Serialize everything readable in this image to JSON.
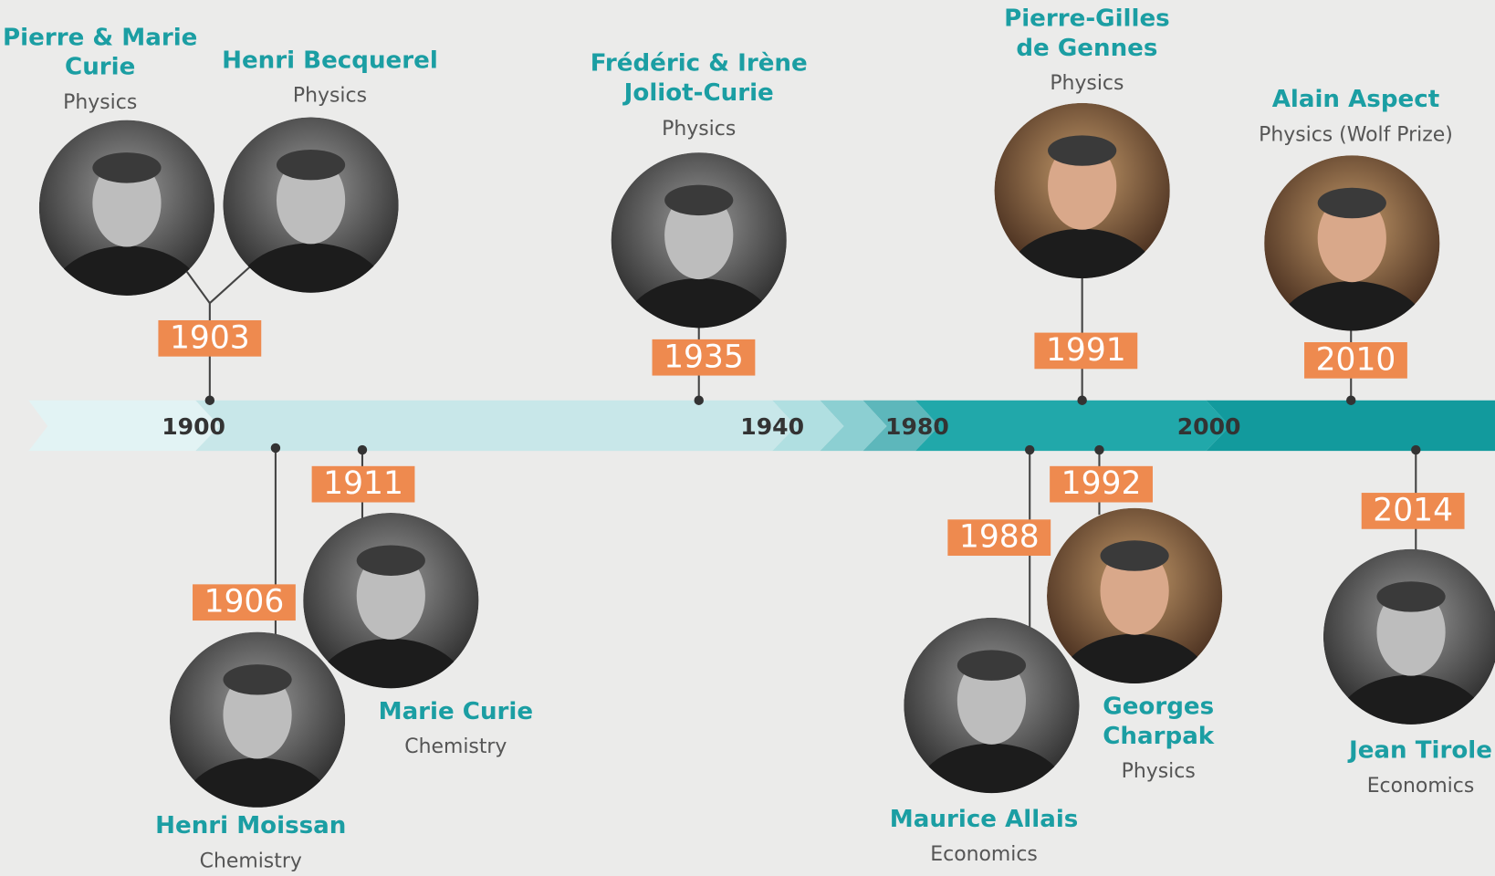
{
  "axis_labels": [
    "1900",
    "1940",
    "1980",
    "2000"
  ],
  "entries": [
    {
      "year": "1903",
      "name": [
        "Pierre & Marie",
        "Curie"
      ],
      "field": "Physics"
    },
    {
      "name": [
        "Henri Becquerel"
      ],
      "field": "Physics"
    },
    {
      "year": "1906",
      "name": [
        "Henri Moissan"
      ],
      "field": "Chemistry"
    },
    {
      "year": "1911",
      "name": [
        "Marie Curie"
      ],
      "field": "Chemistry"
    },
    {
      "year": "1935",
      "name": [
        "Frédéric & Irène",
        "Joliot-Curie"
      ],
      "field": "Physics"
    },
    {
      "year": "1988",
      "name": [
        "Maurice Allais"
      ],
      "field": "Economics"
    },
    {
      "year": "1991",
      "name": [
        "Pierre-Gilles",
        "de Gennes"
      ],
      "field": "Physics"
    },
    {
      "year": "1992",
      "name": [
        "Georges",
        "Charpak"
      ],
      "field": "Physics"
    },
    {
      "year": "2010",
      "name": [
        "Alain Aspect"
      ],
      "field": "Physics (Wolf Prize)"
    },
    {
      "year": "2014",
      "name": [
        "Jean Tirole"
      ],
      "field": "Economics"
    }
  ]
}
